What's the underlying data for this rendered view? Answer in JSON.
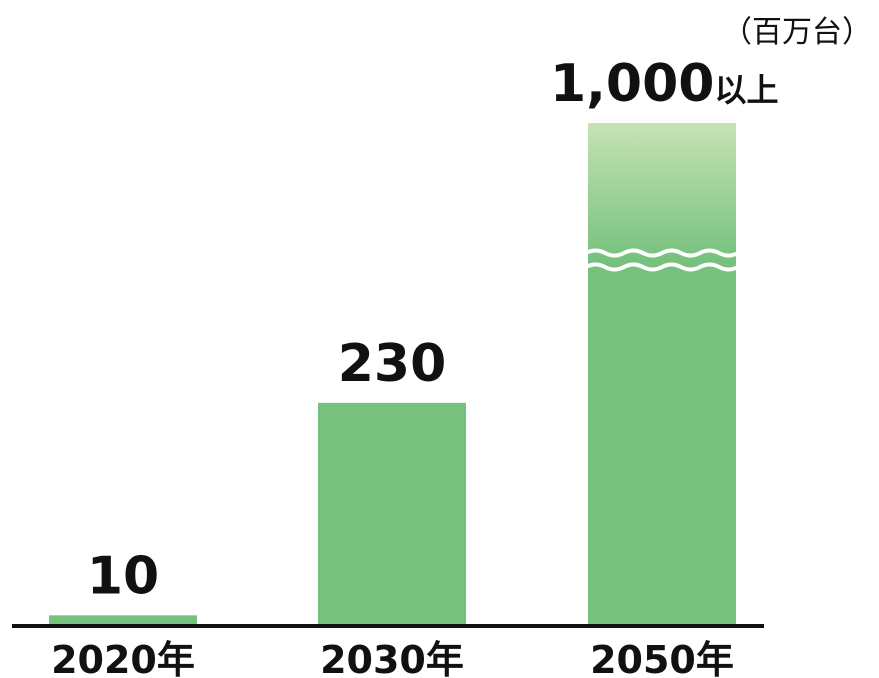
{
  "chart_data": {
    "type": "bar",
    "categories": [
      "2020年",
      "2030年",
      "2050年"
    ],
    "values": [
      10,
      230,
      1000
    ],
    "value_labels": [
      {
        "number": "10",
        "suffix": ""
      },
      {
        "number": "230",
        "suffix": ""
      },
      {
        "number": "1,000",
        "suffix": "以上"
      }
    ],
    "unit": "（百万台）",
    "axis_break": true,
    "grid": false,
    "colors": {
      "bar": "#76c17e",
      "bar_top_light": "#c6e3b4",
      "axis": "#111111",
      "text": "#111111"
    }
  }
}
